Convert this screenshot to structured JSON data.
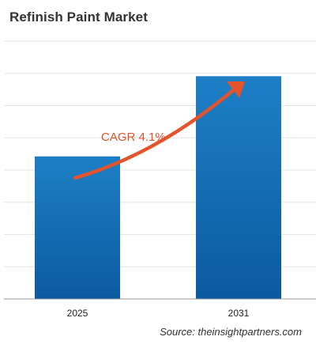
{
  "title": "Refinish Paint Market",
  "source": "Source: theinsightpartners.com",
  "annotation": {
    "text": "CAGR 4.1%",
    "color": "#e5532b"
  },
  "colors": {
    "bar_top": "#1e7fc6",
    "bar_bottom": "#0b5aa0",
    "grid": "#e6e6e6",
    "axis": "#999999"
  },
  "chart_data": {
    "type": "bar",
    "title": "Refinish Paint Market",
    "categories": [
      "2025",
      "2031"
    ],
    "values": [
      0.64,
      1.0
    ],
    "value_note": "",
    "ylim": [
      0,
      1.2
    ],
    "grid": true,
    "gridlines": 8,
    "legend": "none",
    "xlabel": "",
    "ylabel": ""
  }
}
